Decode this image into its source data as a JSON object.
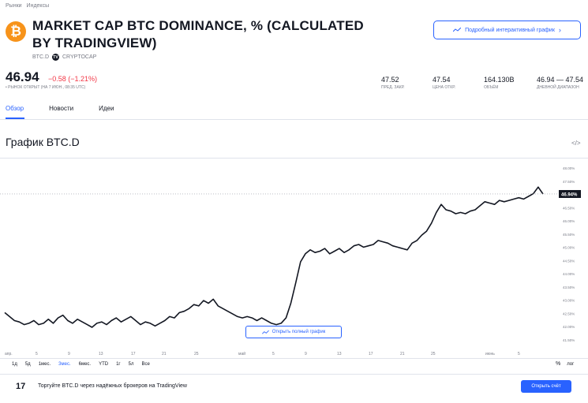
{
  "breadcrumb": [
    "Рынки",
    "Индексы"
  ],
  "header": {
    "title": "MARKET CAP BTC DOMINANCE, % (CALCULATED BY TRADINGVIEW)",
    "symbol": "BTC.D",
    "exchange": "CRYPTOCAP",
    "logo_glyph": "₿",
    "tv_badge": "TV",
    "interactive_chart_btn": "Подробный интерактивный график"
  },
  "quote": {
    "price": "46.94",
    "change": "−0.58 (−1.21%)",
    "status": "• РЫНОК ОТКРЫТ (НА 7 ИЮН., 08:35 UTC)"
  },
  "stats": [
    {
      "value": "47.52",
      "label": "ПРЕД. ЗАКР."
    },
    {
      "value": "47.54",
      "label": "ЦЕНА ОТКР."
    },
    {
      "value": "164.130B",
      "label": "ОБЪЁМ"
    },
    {
      "value": "46.94 — 47.54",
      "label": "ДНЕВНОЙ ДИАПАЗОН"
    }
  ],
  "tabs": [
    "Обзор",
    "Новости",
    "Идеи"
  ],
  "section_title": "График BTC.D",
  "embed_icon": "</>",
  "open_chart_btn": "Открыть полный график",
  "ranges": [
    "1д",
    "5д",
    "1мес.",
    "3мес.",
    "6мес.",
    "YTD",
    "1г",
    "5л",
    "Все"
  ],
  "selected_range": "3мес.",
  "percent_label": "%",
  "log_label": "лог",
  "footer": {
    "logo": "17",
    "text": "Торгуйте BTC.D через надёжных брокеров на TradingView",
    "button": "Открыть счёт"
  },
  "colors": {
    "accent": "#2962ff",
    "negative": "#f23645",
    "btc": "#f7931a",
    "line": "#131722"
  },
  "chart_data": {
    "type": "line",
    "x_labels": [
      "апр.",
      "5",
      "9",
      "13",
      "17",
      "21",
      "25",
      "май",
      "5",
      "9",
      "13",
      "17",
      "21",
      "25",
      "июнь",
      "5"
    ],
    "y_ticks": [
      "48.00%",
      "47.50%",
      "47.00%",
      "46.50%",
      "46.00%",
      "45.50%",
      "45.00%",
      "44.50%",
      "44.00%",
      "43.50%",
      "43.00%",
      "42.50%",
      "42.00%",
      "41.50%"
    ],
    "current_label": "46.94%",
    "current_value": 46.94,
    "ylim": [
      41.3,
      48.15
    ],
    "series": [
      {
        "values": [
          42.5,
          42.35,
          42.2,
          42.15,
          42.05,
          42.1,
          42.2,
          42.05,
          42.1,
          42.25,
          42.1,
          42.3,
          42.4,
          42.2,
          42.1,
          42.25,
          42.15,
          42.05,
          41.95,
          42.1,
          42.15,
          42.05,
          42.2,
          42.3,
          42.15,
          42.25,
          42.35,
          42.2,
          42.05,
          42.15,
          42.1,
          42.0,
          42.1,
          42.2,
          42.35,
          42.3,
          42.5,
          42.55,
          42.65,
          42.8,
          42.75,
          42.95,
          42.85,
          43.0,
          42.75,
          42.65,
          42.55,
          42.45,
          42.35,
          42.3,
          42.35,
          42.3,
          42.2,
          42.3,
          42.2,
          42.1,
          42.05,
          42.1,
          42.3,
          42.85,
          43.6,
          44.4,
          44.7,
          44.85,
          44.75,
          44.8,
          44.9,
          44.7,
          44.8,
          44.9,
          44.75,
          44.85,
          45.0,
          45.05,
          44.95,
          45.0,
          45.05,
          45.2,
          45.15,
          45.1,
          45.0,
          44.95,
          44.9,
          44.85,
          45.1,
          45.2,
          45.4,
          45.55,
          45.85,
          46.25,
          46.55,
          46.35,
          46.3,
          46.2,
          46.25,
          46.2,
          46.3,
          46.35,
          46.5,
          46.65,
          46.6,
          46.55,
          46.7,
          46.65,
          46.7,
          46.75,
          46.8,
          46.75,
          46.85,
          46.95,
          47.2,
          46.94
        ]
      }
    ]
  }
}
